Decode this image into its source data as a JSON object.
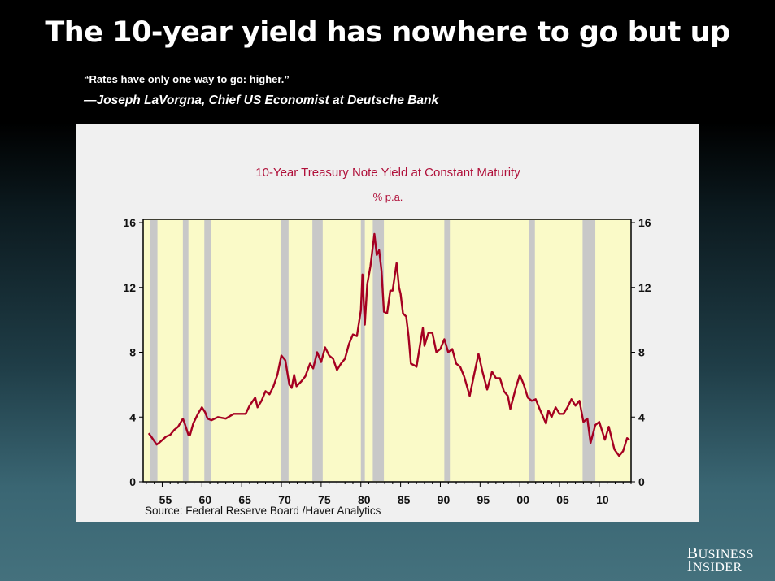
{
  "slide": {
    "title": "The 10-year yield has nowhere to go but up",
    "quote": "“Rates have only one way to go: higher.”",
    "attribution": "—Joseph LaVorgna, Chief US Economist at Deutsche Bank",
    "logo": "Business Insider"
  },
  "chart_data": {
    "type": "line",
    "title": "10-Year Treasury Note Yield at Constant Maturity",
    "subtitle": "% p.a.",
    "source": "Source:  Federal Reserve Board /Haver Analytics",
    "xlim": [
      1952.6,
      2014.0
    ],
    "ylim": [
      0,
      16
    ],
    "y_ticks": [
      0,
      4,
      8,
      12,
      16
    ],
    "y_axis": "both-sides",
    "x_ticks": [
      {
        "year": 1955,
        "label": "55"
      },
      {
        "year": 1960,
        "label": "60"
      },
      {
        "year": 1965,
        "label": "65"
      },
      {
        "year": 1970,
        "label": "70"
      },
      {
        "year": 1975,
        "label": "75"
      },
      {
        "year": 1980,
        "label": "80"
      },
      {
        "year": 1985,
        "label": "85"
      },
      {
        "year": 1990,
        "label": "90"
      },
      {
        "year": 1995,
        "label": "95"
      },
      {
        "year": 2000,
        "label": "00"
      },
      {
        "year": 2005,
        "label": "05"
      },
      {
        "year": 2010,
        "label": "10"
      }
    ],
    "grid": false,
    "colors": {
      "line": "#a50021",
      "plot_bg": "#fafac8",
      "shading": "#c8c8c8",
      "title": "#b0103a"
    },
    "shaded_periods": [
      [
        1953.5,
        1954.4
      ],
      [
        1957.6,
        1958.3
      ],
      [
        1960.3,
        1961.1
      ],
      [
        1969.9,
        1970.9
      ],
      [
        1973.9,
        1975.2
      ],
      [
        1980.0,
        1980.5
      ],
      [
        1981.5,
        1982.9
      ],
      [
        1990.5,
        1991.2
      ],
      [
        2001.2,
        2001.9
      ],
      [
        2007.9,
        2009.5
      ]
    ],
    "series": [
      {
        "x": [
          1953.3,
          1953.6,
          1954.3,
          1954.6,
          1955.5,
          1956.0,
          1956.5,
          1957.0,
          1957.6,
          1957.9,
          1958.3,
          1958.5,
          1958.9,
          1959.5,
          1960.0,
          1960.4,
          1960.7,
          1961.2,
          1962.0,
          1963.0,
          1964.0,
          1965.0,
          1965.5,
          1966.0,
          1966.7,
          1967.0,
          1967.5,
          1968.0,
          1968.5,
          1969.0,
          1969.5,
          1970.0,
          1970.5,
          1971.0,
          1971.3,
          1971.6,
          1971.9,
          1972.5,
          1973.0,
          1973.6,
          1974.0,
          1974.5,
          1975.0,
          1975.5,
          1976.0,
          1976.5,
          1977.0,
          1977.5,
          1978.0,
          1978.5,
          1979.0,
          1979.5,
          1980.0,
          1980.2,
          1980.5,
          1980.8,
          1981.2,
          1981.7,
          1982.0,
          1982.3,
          1982.6,
          1982.9,
          1983.3,
          1983.7,
          1984.0,
          1984.5,
          1984.8,
          1985.0,
          1985.3,
          1985.7,
          1986.0,
          1986.3,
          1986.7,
          1987.0,
          1987.5,
          1987.8,
          1988.0,
          1988.5,
          1989.0,
          1989.5,
          1990.0,
          1990.5,
          1991.0,
          1991.5,
          1992.0,
          1992.5,
          1993.0,
          1993.7,
          1994.2,
          1994.8,
          1995.3,
          1995.9,
          1996.5,
          1997.0,
          1997.5,
          1998.0,
          1998.5,
          1998.8,
          1999.5,
          2000.0,
          2000.5,
          2001.0,
          2001.5,
          2002.0,
          2002.5,
          2003.3,
          2003.6,
          2004.0,
          2004.5,
          2005.0,
          2005.5,
          2006.0,
          2006.5,
          2007.0,
          2007.5,
          2008.0,
          2008.5,
          2008.9,
          2009.5,
          2010.0,
          2010.7,
          2011.2,
          2011.9,
          2012.5,
          2013.0,
          2013.5,
          2013.8
        ],
        "y": [
          3.0,
          2.8,
          2.3,
          2.4,
          2.8,
          2.9,
          3.2,
          3.4,
          3.9,
          3.5,
          2.9,
          2.9,
          3.6,
          4.2,
          4.6,
          4.3,
          3.9,
          3.8,
          4.0,
          3.9,
          4.2,
          4.2,
          4.2,
          4.7,
          5.2,
          4.6,
          5.0,
          5.6,
          5.4,
          5.9,
          6.6,
          7.8,
          7.5,
          6.0,
          5.8,
          6.6,
          5.9,
          6.2,
          6.5,
          7.3,
          7.0,
          8.0,
          7.4,
          8.3,
          7.8,
          7.6,
          6.9,
          7.3,
          7.6,
          8.5,
          9.1,
          9.0,
          10.6,
          12.8,
          9.7,
          12.2,
          13.3,
          15.3,
          14.0,
          14.3,
          13.0,
          10.5,
          10.4,
          11.8,
          11.8,
          13.5,
          12.0,
          11.6,
          10.4,
          10.2,
          9.0,
          7.3,
          7.2,
          7.1,
          8.6,
          9.5,
          8.4,
          9.2,
          9.2,
          8.0,
          8.2,
          8.8,
          8.0,
          8.2,
          7.3,
          7.1,
          6.5,
          5.3,
          6.5,
          7.9,
          6.8,
          5.7,
          6.8,
          6.4,
          6.4,
          5.6,
          5.3,
          4.5,
          5.8,
          6.6,
          6.0,
          5.2,
          5.0,
          5.1,
          4.5,
          3.6,
          4.4,
          4.0,
          4.6,
          4.2,
          4.2,
          4.6,
          5.1,
          4.7,
          5.0,
          3.7,
          3.9,
          2.4,
          3.5,
          3.7,
          2.6,
          3.4,
          2.0,
          1.6,
          1.9,
          2.7,
          2.6
        ]
      }
    ]
  }
}
